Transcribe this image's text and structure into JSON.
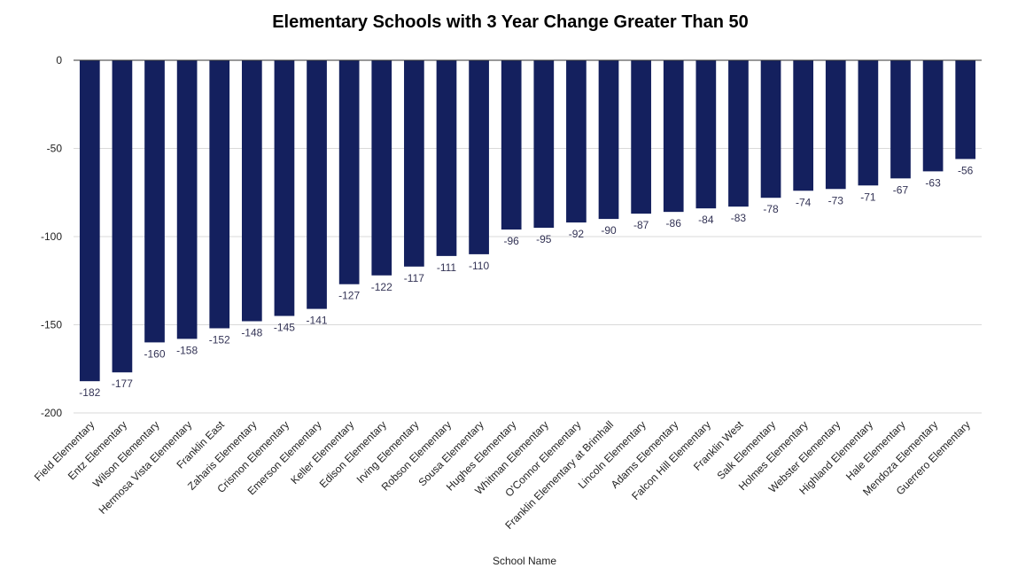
{
  "chart_data": {
    "type": "bar",
    "title": "Elementary Schools with 3 Year Change Greater Than 50",
    "xlabel": "School Name",
    "ylabel": "",
    "ylim": [
      -200,
      0
    ],
    "yticks": [
      0,
      -50,
      -100,
      -150,
      -200
    ],
    "grid": true,
    "bar_color": "#14205e",
    "categories": [
      "Field Elementary",
      "Entz Elementary",
      "Wilson Elementary",
      "Hermosa Vista Elementary",
      "Franklin East",
      "Zaharis Elementary",
      "Crismon Elementary",
      "Emerson Elementary",
      "Keller Elementary",
      "Edison Elementary",
      "Irving Elementary",
      "Robson Elementary",
      "Sousa Elementary",
      "Hughes Elementary",
      "Whitman Elementary",
      "O'Connor Elementary",
      "Franklin Elementary at Brimhall",
      "Lincoln Elementary",
      "Adams Elementary",
      "Falcon Hill Elementary",
      "Franklin West",
      "Salk Elementary",
      "Holmes Elementary",
      "Webster Elementary",
      "Highland Elementary",
      "Hale Elementary",
      "Mendoza Elementary",
      "Guerrero Elementary"
    ],
    "values": [
      -182,
      -177,
      -160,
      -158,
      -152,
      -148,
      -145,
      -141,
      -127,
      -122,
      -117,
      -111,
      -110,
      -96,
      -95,
      -92,
      -90,
      -87,
      -86,
      -84,
      -83,
      -78,
      -74,
      -73,
      -71,
      -67,
      -63,
      -56
    ]
  }
}
